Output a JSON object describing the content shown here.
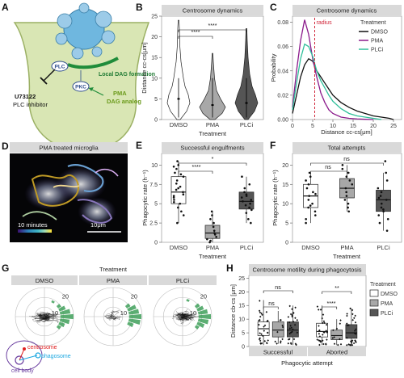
{
  "panels": {
    "A": {
      "label": "A",
      "dag_label": "Local DAG formation",
      "plc_label": "PLC",
      "pkc_label": "PKC",
      "inhibitor_name": "U73122",
      "inhibitor_desc": "PLC inhibitor",
      "pma_name": "PMA",
      "pma_desc": "DAG analog",
      "colors": {
        "cell": "#bdd48a",
        "centrosome": "#6fb7df",
        "dag": "#1f8c3a"
      }
    },
    "B": {
      "label": "B",
      "strip": "Centrosome dynamics",
      "ylabel": "Distance cc-cs[μm]",
      "xlabel": "Treatment",
      "sig": [
        "****",
        "****"
      ],
      "chart_data": {
        "type": "violin",
        "categories": [
          "DMSO",
          "PMA",
          "PLCi"
        ],
        "ylim": [
          0,
          25
        ],
        "yticks": [
          0,
          5,
          10,
          15,
          20,
          25
        ],
        "medians": [
          5,
          3.5,
          4
        ],
        "colors": [
          "#ffffff",
          "#a8a8a8",
          "#555555"
        ]
      }
    },
    "C": {
      "label": "C",
      "strip": "Centrosome dynamics",
      "ylabel": "Probability",
      "xlabel": "Distance cc-cs[μm]",
      "annotation": "radius",
      "legend_title": "Treatment",
      "chart_data": {
        "type": "line",
        "xlim": [
          0,
          27
        ],
        "ylim": [
          0,
          0.085
        ],
        "xticks": [
          0,
          5,
          10,
          15,
          20,
          25
        ],
        "yticks": [
          0,
          0.02,
          0.04,
          0.06,
          0.08
        ],
        "radius_x": 5.5,
        "series": [
          {
            "name": "DMSO",
            "color": "#111111",
            "x": [
              0,
              1,
              2,
              3,
              4,
              5,
              6,
              7,
              8,
              9,
              10,
              12,
              14,
              16,
              18,
              20,
              22,
              24,
              25
            ],
            "y": [
              0.005,
              0.02,
              0.035,
              0.045,
              0.05,
              0.048,
              0.04,
              0.035,
              0.03,
              0.025,
              0.02,
              0.014,
              0.01,
              0.007,
              0.005,
              0.003,
              0.002,
              0.001,
              0.0
            ]
          },
          {
            "name": "PMA",
            "color": "#8b1a8b",
            "x": [
              0,
              1,
              2,
              3,
              4,
              5,
              6,
              7,
              8,
              9,
              10,
              12,
              14,
              16,
              18,
              20
            ],
            "y": [
              0.01,
              0.04,
              0.065,
              0.082,
              0.07,
              0.05,
              0.035,
              0.022,
              0.014,
              0.008,
              0.005,
              0.002,
              0.001,
              0.0005,
              0.0002,
              0.0
            ]
          },
          {
            "name": "PLCi",
            "color": "#2fbf9a",
            "x": [
              0,
              1,
              2,
              3,
              4,
              5,
              6,
              7,
              8,
              9,
              10,
              12,
              14,
              16,
              18,
              20,
              22
            ],
            "y": [
              0.008,
              0.03,
              0.05,
              0.062,
              0.06,
              0.052,
              0.04,
              0.032,
              0.026,
              0.02,
              0.015,
              0.009,
              0.005,
              0.003,
              0.002,
              0.001,
              0.0
            ]
          }
        ]
      }
    },
    "D": {
      "label": "D",
      "strip": "PMA treated microglia",
      "time_label": "10 minutes",
      "scale_label": "10μm"
    },
    "E": {
      "label": "E",
      "strip": "Successful engulfments",
      "ylabel": "Phagocytic rate (h⁻¹)",
      "xlabel": "Treatment",
      "sig": [
        "****",
        "*"
      ],
      "chart_data": {
        "type": "box",
        "categories": [
          "DMSO",
          "PMA",
          "PLCi"
        ],
        "ylim": [
          0,
          11.5
        ],
        "yticks": [
          0,
          2.5,
          5,
          7.5,
          10
        ],
        "boxes": [
          {
            "q1": 5,
            "median": 6.5,
            "q3": 8.5,
            "low": 2.5,
            "high": 10.5
          },
          {
            "q1": 0.5,
            "median": 1.2,
            "q3": 2.2,
            "low": 0,
            "high": 4
          },
          {
            "q1": 4.3,
            "median": 5.3,
            "q3": 6.5,
            "low": 2.5,
            "high": 8.5
          }
        ],
        "points": [
          [
            10.5,
            10,
            9.8,
            9.5,
            9,
            8.8,
            8.5,
            8,
            7.6,
            7.2,
            7,
            6.8,
            6.5,
            6.2,
            6,
            5.8,
            5.5,
            5.2,
            5,
            4.5,
            4,
            3.5,
            2.5
          ],
          [
            4,
            3.5,
            3,
            2.5,
            2,
            1.5,
            1.2,
            1,
            0.7,
            0.4,
            0.2,
            0
          ],
          [
            8.5,
            7.5,
            7,
            6.5,
            6.2,
            6,
            5.8,
            5.5,
            5.3,
            5,
            4.8,
            4.5,
            4.2,
            3.8,
            3,
            2.5
          ]
        ],
        "colors": [
          "#ffffff",
          "#a8a8a8",
          "#555555"
        ]
      }
    },
    "F": {
      "label": "F",
      "strip": "Total attempts",
      "ylabel": "Phagocytic rate (h⁻¹)",
      "xlabel": "Treatment",
      "sig": [
        "ns",
        "ns"
      ],
      "chart_data": {
        "type": "box",
        "categories": [
          "DMSO",
          "PMA",
          "PLCi"
        ],
        "ylim": [
          0,
          23
        ],
        "yticks": [
          0,
          5,
          10,
          15,
          20
        ],
        "boxes": [
          {
            "q1": 9,
            "median": 12,
            "q3": 15,
            "low": 5,
            "high": 18
          },
          {
            "q1": 11.5,
            "median": 14,
            "q3": 16.5,
            "low": 8,
            "high": 20
          },
          {
            "q1": 8,
            "median": 11,
            "q3": 13.5,
            "low": 3,
            "high": 18
          }
        ],
        "points": [
          [
            18,
            17,
            16,
            15,
            14,
            13,
            12.5,
            12,
            11,
            10,
            9.5,
            9,
            8,
            7,
            6,
            5
          ],
          [
            20,
            19,
            18,
            17,
            16,
            15,
            14,
            13,
            12,
            11,
            10,
            9,
            8
          ],
          [
            21,
            18,
            16,
            14,
            13,
            12,
            11.5,
            11,
            10,
            9,
            8.5,
            8,
            7,
            6,
            5,
            3
          ]
        ],
        "colors": [
          "#ffffff",
          "#a8a8a8",
          "#555555"
        ]
      }
    },
    "G": {
      "label": "G",
      "title": "Treatment",
      "strips": [
        "DMSO",
        "PMA",
        "PLCi"
      ],
      "ring_labels": [
        "20",
        "10"
      ],
      "legend": {
        "centrosome": "centrosome",
        "phagosome": "phagosome",
        "cell_body": "cell body"
      },
      "colors": {
        "centrosome": "#e02020",
        "phagosome": "#1aa7e0",
        "cell_body": "#6b3fa0",
        "bars": "#3fa05a"
      },
      "chart_data": {
        "type": "polar",
        "panels": [
          {
            "name": "DMSO",
            "track_density": 60,
            "bars": [
              {
                "angle": 0,
                "r": 18
              },
              {
                "angle": 12,
                "r": 14
              },
              {
                "angle": -12,
                "r": 13
              },
              {
                "angle": 24,
                "r": 9
              },
              {
                "angle": -24,
                "r": 8
              },
              {
                "angle": 36,
                "r": 5
              },
              {
                "angle": -36,
                "r": 5
              },
              {
                "angle": 60,
                "r": 3
              }
            ]
          },
          {
            "name": "PMA",
            "track_density": 20,
            "bars": [
              {
                "angle": 0,
                "r": 17
              },
              {
                "angle": 12,
                "r": 14
              },
              {
                "angle": -12,
                "r": 16
              },
              {
                "angle": 24,
                "r": 12
              },
              {
                "angle": -24,
                "r": 8
              },
              {
                "angle": 36,
                "r": 6
              }
            ]
          },
          {
            "name": "PLCi",
            "track_density": 60,
            "bars": [
              {
                "angle": 0,
                "r": 17
              },
              {
                "angle": 12,
                "r": 13
              },
              {
                "angle": -12,
                "r": 14
              },
              {
                "angle": 24,
                "r": 9
              },
              {
                "angle": -24,
                "r": 10
              },
              {
                "angle": 36,
                "r": 6
              },
              {
                "angle": -36,
                "r": 5
              },
              {
                "angle": 72,
                "r": 3
              }
            ]
          }
        ]
      }
    },
    "H": {
      "label": "H",
      "strip": "Centrosome motility during phagocytosis",
      "ylabel": "Distance cb-cs [μm]",
      "xlabel": "Phagocytic attempt",
      "group_labels": [
        "Successful",
        "Aborted"
      ],
      "legend_title": "Treatment",
      "legend_items": [
        "DMSO",
        "PMA",
        "PLCi"
      ],
      "sig": [
        "ns",
        "ns",
        "****",
        "**"
      ],
      "chart_data": {
        "type": "box",
        "groups": [
          "Successful",
          "Aborted"
        ],
        "series": [
          "DMSO",
          "PMA",
          "PLCi"
        ],
        "ylim": [
          0,
          26
        ],
        "yticks": [
          0,
          5,
          10,
          15,
          20,
          25
        ],
        "boxes": [
          [
            {
              "q1": 4,
              "median": 6.5,
              "q3": 9,
              "low": 0.5,
              "high": 17
            },
            {
              "q1": 3.5,
              "median": 6,
              "q3": 9,
              "low": 1,
              "high": 13
            },
            {
              "q1": 3.5,
              "median": 6,
              "q3": 9,
              "low": 0.5,
              "high": 15
            }
          ],
          [
            {
              "q1": 3.5,
              "median": 5.5,
              "q3": 8.5,
              "low": 0.5,
              "high": 15
            },
            {
              "q1": 2.5,
              "median": 4,
              "q3": 6,
              "low": 0.5,
              "high": 10
            },
            {
              "q1": 3,
              "median": 5,
              "q3": 8,
              "low": 0.5,
              "high": 14
            }
          ]
        ],
        "colors": [
          "#ffffff",
          "#a8a8a8",
          "#555555"
        ]
      }
    }
  }
}
